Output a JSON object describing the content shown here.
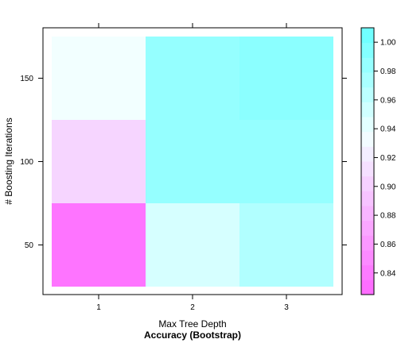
{
  "chart_data": {
    "type": "heatmap",
    "xlabel": "Max Tree Depth",
    "ylabel": "# Boosting Iterations",
    "sublabel": "Accuracy (Bootstrap)",
    "x": [
      1,
      2,
      3
    ],
    "y": [
      50,
      100,
      150
    ],
    "xlim": [
      0.5,
      3.5
    ],
    "ylim": [
      25,
      175
    ],
    "x_ticks": [
      "1",
      "2",
      "3"
    ],
    "y_ticks": [
      "50",
      "100",
      "150"
    ],
    "values": [
      [
        0.835,
        0.95,
        0.97
      ],
      [
        0.905,
        0.985,
        0.985
      ],
      [
        0.935,
        0.985,
        0.99
      ]
    ],
    "colorbar": {
      "min": 0.825,
      "max": 1.01,
      "ticks": [
        "0.84",
        "0.86",
        "0.88",
        "0.90",
        "0.92",
        "0.94",
        "0.96",
        "0.98",
        "1.00"
      ],
      "tick_values": [
        0.84,
        0.86,
        0.88,
        0.9,
        0.92,
        0.94,
        0.96,
        0.98,
        1.0
      ],
      "low_color": "#ff66ff",
      "mid_color": "#f2ffff",
      "high_color": "#66ffff"
    }
  }
}
